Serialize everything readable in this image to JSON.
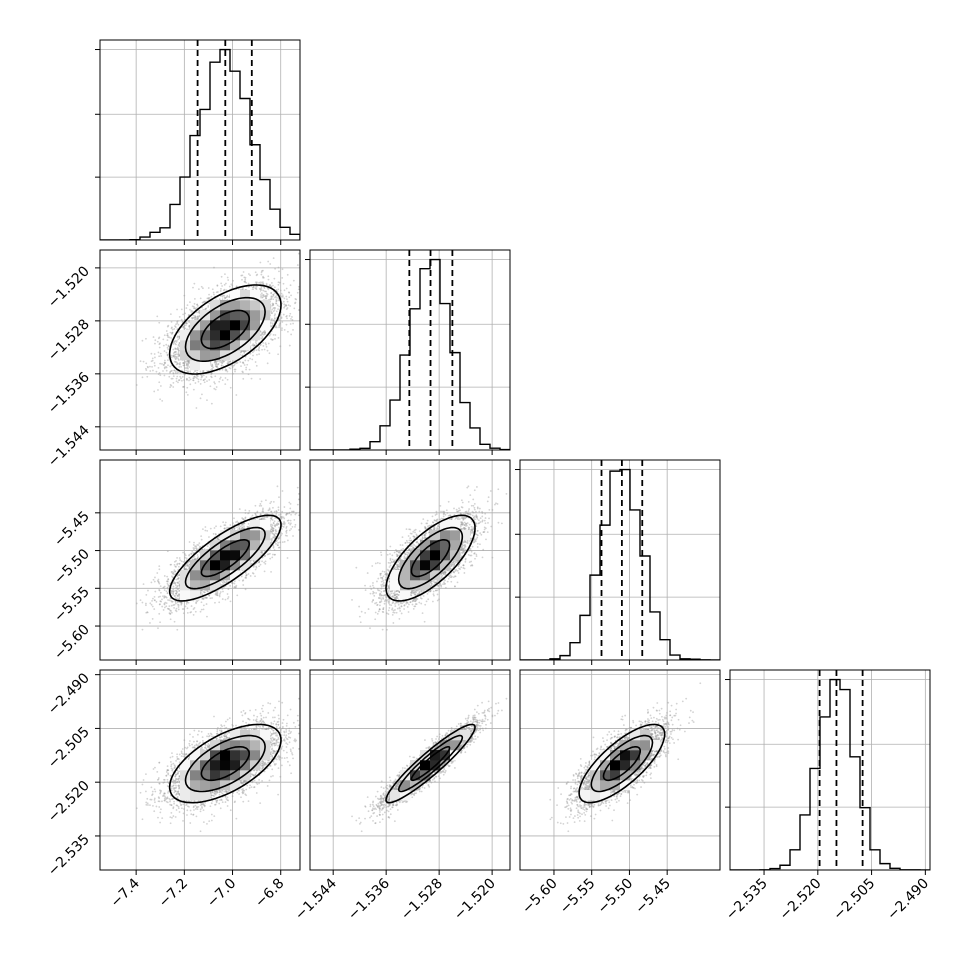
{
  "chart_data": {
    "type": "corner",
    "grid": true,
    "parameters": [
      {
        "range": [
          -7.55,
          -6.72
        ],
        "ticks": [
          -7.4,
          -7.2,
          -7.0,
          -6.8
        ],
        "tick_labels": [
          "−7.4",
          "−7.2",
          "−7.0",
          "−6.8"
        ],
        "mean": -7.03,
        "sd": 0.11,
        "quantiles": [
          -7.145,
          -7.03,
          -6.92
        ]
      },
      {
        "range": [
          -1.5475,
          -1.5173
        ],
        "ticks": [
          -1.544,
          -1.536,
          -1.528,
          -1.52
        ],
        "tick_labels": [
          "−1.544",
          "−1.536",
          "−1.528",
          "−1.520"
        ],
        "mean": -1.5293,
        "sd": 0.0032,
        "quantiles": [
          -1.5325,
          -1.5293,
          -1.526
        ]
      },
      {
        "range": [
          -5.645,
          -5.38
        ],
        "ticks": [
          -5.6,
          -5.55,
          -5.5,
          -5.45
        ],
        "tick_labels": [
          "−5.60",
          "−5.55",
          "−5.50",
          "−5.45"
        ],
        "mean": -5.51,
        "sd": 0.027,
        "quantiles": [
          -5.537,
          -5.51,
          -5.483
        ]
      },
      {
        "range": [
          -2.5445,
          -2.4887
        ],
        "ticks": [
          -2.535,
          -2.52,
          -2.505,
          -2.49
        ],
        "tick_labels": [
          "−2.535",
          "−2.520",
          "−2.505",
          "−2.490"
        ],
        "mean": -2.5148,
        "sd": 0.0052,
        "quantiles": [
          -2.5195,
          -2.5148,
          -2.5075
        ]
      }
    ],
    "correlations": [
      [
        1.0,
        0.55,
        0.78,
        0.6
      ],
      [
        0.55,
        1.0,
        0.7,
        0.93
      ],
      [
        0.78,
        0.7,
        1.0,
        0.75
      ],
      [
        0.6,
        0.93,
        0.75,
        1.0
      ]
    ],
    "histogram_bins": 20,
    "contour_levels": 3,
    "colors": {
      "hist": "#000000",
      "points": "#9e9e9e",
      "grid": "#b0b0b0",
      "frame": "#000000"
    }
  }
}
